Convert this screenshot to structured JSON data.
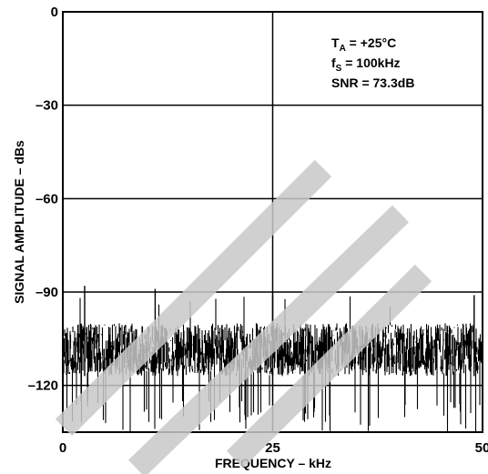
{
  "chart_data": {
    "type": "line",
    "title": "",
    "xlabel": "FREQUENCY – kHz",
    "ylabel": "SIGNAL AMPLITUDE – dBs",
    "xlim": [
      0,
      50
    ],
    "ylim": [
      -135,
      0
    ],
    "x_ticks": [
      {
        "value": 0,
        "label": "0"
      },
      {
        "value": 25,
        "label": "25"
      },
      {
        "value": 50,
        "label": "50"
      }
    ],
    "y_ticks": [
      {
        "value": 0,
        "label": "0"
      },
      {
        "value": -30,
        "label": "–30"
      },
      {
        "value": -60,
        "label": "–60"
      },
      {
        "value": -90,
        "label": "–90"
      },
      {
        "value": -120,
        "label": "–120"
      }
    ],
    "grid": true,
    "annotations": {
      "ta_main": "T",
      "ta_sub": "A",
      "ta_rest": " = +25°C",
      "fs_main": "f",
      "fs_sub": "S",
      "fs_rest": " = 100kHz",
      "snr": "SNR = 73.3dB"
    },
    "series": [
      {
        "noise_floor_db": [
          -125,
          -95
        ],
        "typical_level_db": [
          -117,
          -100
        ],
        "peak_spikes_db": [
          {
            "x": 2.6,
            "y": -88
          },
          {
            "x": 11.0,
            "y": -89
          },
          {
            "x": 25.0,
            "y": -91
          },
          {
            "x": 49.0,
            "y": -91
          }
        ]
      }
    ],
    "watermark_color": "#c8c8c8",
    "line_color": "#000000"
  }
}
